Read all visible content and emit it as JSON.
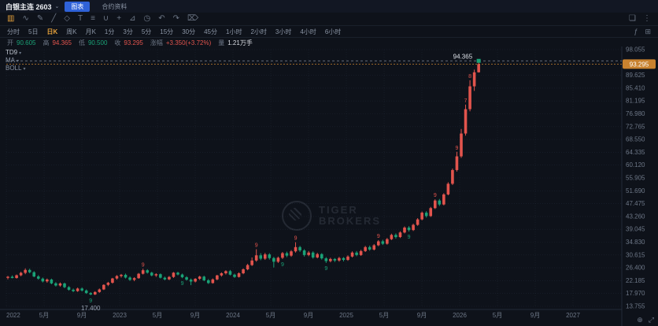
{
  "header": {
    "title": "白银主连 2603",
    "tabs": [
      {
        "label": "图表",
        "active": true
      },
      {
        "label": "合约资料",
        "active": false
      }
    ]
  },
  "toolbar": {
    "icons": [
      {
        "name": "kline-type-icon",
        "glyph": "▥",
        "active": true
      },
      {
        "name": "line-chart-icon",
        "glyph": "∿"
      },
      {
        "name": "drawing-pencil-icon",
        "glyph": "✎"
      },
      {
        "name": "trend-line-icon",
        "glyph": "╱"
      },
      {
        "name": "shapes-icon",
        "glyph": "◇"
      },
      {
        "name": "text-tool-icon",
        "glyph": "T"
      },
      {
        "name": "fibonacci-icon",
        "glyph": "≡"
      },
      {
        "name": "magnet-icon",
        "glyph": "∪"
      },
      {
        "name": "crosshair-icon",
        "glyph": "+"
      },
      {
        "name": "ruler-icon",
        "glyph": "⊿"
      },
      {
        "name": "clock-icon",
        "glyph": "◷"
      },
      {
        "name": "undo-icon",
        "glyph": "↶"
      },
      {
        "name": "redo-icon",
        "glyph": "↷"
      },
      {
        "name": "delete-icon",
        "glyph": "⌦"
      }
    ],
    "right_icons": [
      {
        "name": "window-layout-icon",
        "glyph": "❏"
      },
      {
        "name": "more-menu-icon",
        "glyph": "⋮"
      }
    ]
  },
  "timeframes": {
    "items": [
      "分时",
      "5日",
      "日K",
      "周K",
      "月K",
      "1分",
      "3分",
      "5分",
      "15分",
      "30分",
      "45分",
      "1小时",
      "2小时",
      "3小时",
      "4小时",
      "6小时"
    ],
    "active_index": 2,
    "right_icons": [
      {
        "name": "indicator-fx-icon",
        "glyph": "ƒ"
      },
      {
        "name": "grid-view-icon",
        "glyph": "⊞"
      }
    ]
  },
  "quote": {
    "open_label": "开",
    "open": "90.605",
    "high_label": "高",
    "high": "94.365",
    "low_label": "低",
    "low": "90.500",
    "close_label": "收",
    "close": "93.295",
    "chg_label": "涨幅",
    "chg": "+3.350(+3.72%)",
    "vol_label": "量",
    "vol": "1.21万手"
  },
  "indicators": [
    {
      "label": "TD9"
    },
    {
      "label": "MA"
    },
    {
      "label": "BOLL"
    }
  ],
  "watermark": {
    "line1": "TIGER",
    "line2": "BROKERS"
  },
  "chart_data": {
    "type": "candlestick",
    "timeframe": "日K",
    "title": "白银主连 2603",
    "y_axis": {
      "min": 13.755,
      "max": 98.055,
      "step": 4.215,
      "labels": [
        "98.055",
        "93.840",
        "89.625",
        "85.410",
        "81.195",
        "76.980",
        "72.765",
        "68.550",
        "64.335",
        "60.120",
        "55.905",
        "51.690",
        "47.475",
        "43.260",
        "39.045",
        "34.830",
        "30.615",
        "26.400",
        "22.185",
        "17.970",
        "13.755"
      ]
    },
    "x_labels": [
      {
        "t": 0,
        "label": "2022"
      },
      {
        "t": 4,
        "label": "5月"
      },
      {
        "t": 8,
        "label": "9月"
      },
      {
        "t": 12,
        "label": "2023"
      },
      {
        "t": 16,
        "label": "5月"
      },
      {
        "t": 20,
        "label": "9月"
      },
      {
        "t": 24,
        "label": "2024"
      },
      {
        "t": 28,
        "label": "5月"
      },
      {
        "t": 32,
        "label": "9月"
      },
      {
        "t": 36,
        "label": "2025"
      },
      {
        "t": 40,
        "label": "5月"
      },
      {
        "t": 44,
        "label": "9月"
      },
      {
        "t": 48,
        "label": "2026"
      },
      {
        "t": 52,
        "label": "5月"
      },
      {
        "t": 56,
        "label": "9月"
      },
      {
        "t": 60,
        "label": "2027"
      }
    ],
    "candles": [
      [
        23.1,
        23.75,
        22.6,
        23.45
      ],
      [
        23.45,
        23.9,
        22.95,
        23.05
      ],
      [
        23.05,
        24.2,
        22.85,
        23.95
      ],
      [
        23.95,
        25.1,
        23.6,
        24.75
      ],
      [
        24.75,
        26.2,
        24.3,
        25.7
      ],
      [
        25.7,
        26.1,
        24.6,
        24.95
      ],
      [
        24.95,
        25.3,
        23.3,
        23.55
      ],
      [
        23.55,
        24.0,
        22.5,
        22.85
      ],
      [
        22.85,
        23.2,
        21.6,
        21.95
      ],
      [
        21.95,
        22.9,
        21.5,
        22.55
      ],
      [
        22.55,
        22.85,
        21.0,
        21.3
      ],
      [
        21.3,
        21.7,
        20.25,
        20.6
      ],
      [
        20.6,
        21.6,
        20.2,
        21.25
      ],
      [
        21.25,
        21.55,
        19.7,
        20.05
      ],
      [
        20.05,
        20.4,
        18.9,
        19.2
      ],
      [
        19.2,
        19.6,
        18.4,
        18.75
      ],
      [
        18.75,
        19.9,
        18.5,
        19.6
      ],
      [
        19.6,
        19.95,
        18.6,
        18.95
      ],
      [
        18.95,
        19.3,
        17.85,
        18.1
      ],
      [
        18.1,
        18.4,
        17.4,
        17.65
      ],
      [
        17.65,
        18.7,
        17.45,
        18.45
      ],
      [
        18.45,
        19.6,
        18.2,
        19.3
      ],
      [
        19.3,
        21.0,
        19.1,
        20.8
      ],
      [
        20.8,
        21.8,
        20.4,
        21.5
      ],
      [
        21.5,
        23.1,
        21.2,
        22.9
      ],
      [
        22.9,
        24.0,
        22.5,
        23.7
      ],
      [
        23.7,
        24.4,
        23.2,
        24.1
      ],
      [
        24.1,
        24.5,
        22.9,
        23.2
      ],
      [
        23.2,
        23.6,
        22.1,
        22.45
      ],
      [
        22.45,
        23.3,
        22.0,
        23.0
      ],
      [
        23.0,
        24.7,
        22.8,
        24.45
      ],
      [
        24.45,
        26.1,
        24.2,
        25.6
      ],
      [
        25.6,
        25.95,
        24.5,
        24.8
      ],
      [
        24.8,
        25.1,
        23.6,
        23.9
      ],
      [
        23.9,
        24.6,
        23.4,
        24.3
      ],
      [
        24.3,
        24.55,
        22.9,
        23.15
      ],
      [
        23.15,
        23.5,
        22.3,
        22.6
      ],
      [
        22.6,
        23.7,
        22.35,
        23.4
      ],
      [
        23.4,
        25.0,
        23.1,
        24.8
      ],
      [
        24.8,
        25.1,
        23.9,
        24.2
      ],
      [
        24.2,
        24.5,
        23.0,
        23.3
      ],
      [
        23.3,
        23.65,
        22.2,
        22.5
      ],
      [
        22.5,
        22.9,
        20.7,
        21.9
      ],
      [
        21.9,
        23.0,
        21.6,
        22.8
      ],
      [
        22.8,
        23.8,
        22.4,
        23.5
      ],
      [
        23.5,
        23.8,
        22.0,
        22.3
      ],
      [
        22.3,
        22.7,
        21.1,
        21.4
      ],
      [
        21.4,
        22.9,
        21.2,
        22.6
      ],
      [
        22.6,
        24.1,
        22.3,
        23.9
      ],
      [
        23.9,
        24.9,
        23.5,
        24.6
      ],
      [
        24.6,
        25.6,
        24.2,
        25.3
      ],
      [
        25.3,
        25.7,
        23.9,
        24.15
      ],
      [
        24.15,
        24.5,
        23.1,
        23.4
      ],
      [
        23.4,
        24.9,
        23.2,
        24.6
      ],
      [
        24.6,
        26.2,
        24.3,
        25.9
      ],
      [
        25.9,
        27.7,
        25.6,
        27.3
      ],
      [
        27.3,
        29.8,
        27.0,
        28.8
      ],
      [
        28.8,
        32.5,
        28.4,
        30.5
      ],
      [
        30.5,
        31.2,
        28.9,
        29.4
      ],
      [
        29.4,
        31.3,
        29.0,
        30.8
      ],
      [
        30.8,
        31.2,
        29.1,
        29.6
      ],
      [
        29.6,
        30.0,
        26.5,
        28.4
      ],
      [
        28.4,
        30.1,
        28.0,
        29.7
      ],
      [
        29.7,
        31.6,
        29.3,
        31.2
      ],
      [
        31.2,
        31.7,
        29.9,
        30.4
      ],
      [
        30.4,
        32.2,
        30.0,
        31.8
      ],
      [
        31.8,
        34.8,
        31.4,
        33.2
      ],
      [
        33.2,
        33.6,
        31.6,
        32.1
      ],
      [
        32.1,
        32.5,
        30.1,
        30.6
      ],
      [
        30.6,
        31.9,
        30.2,
        31.4
      ],
      [
        31.4,
        31.8,
        29.4,
        29.8
      ],
      [
        29.8,
        31.3,
        29.5,
        30.9
      ],
      [
        30.9,
        31.2,
        29.1,
        29.5
      ],
      [
        29.5,
        29.9,
        28.0,
        28.6
      ],
      [
        28.6,
        29.7,
        28.2,
        29.3
      ],
      [
        29.3,
        29.6,
        28.3,
        28.8
      ],
      [
        28.8,
        30.0,
        28.4,
        29.6
      ],
      [
        29.6,
        29.9,
        28.5,
        29.0
      ],
      [
        29.0,
        30.5,
        28.7,
        30.1
      ],
      [
        30.1,
        31.8,
        29.8,
        31.4
      ],
      [
        31.4,
        31.9,
        30.2,
        30.6
      ],
      [
        30.6,
        32.3,
        30.3,
        31.9
      ],
      [
        31.9,
        33.6,
        31.6,
        33.2
      ],
      [
        33.2,
        33.7,
        32.0,
        32.4
      ],
      [
        32.4,
        34.2,
        32.1,
        33.8
      ],
      [
        33.8,
        35.5,
        33.5,
        35.1
      ],
      [
        35.1,
        35.6,
        33.9,
        34.3
      ],
      [
        34.3,
        36.2,
        34.0,
        35.8
      ],
      [
        35.8,
        37.6,
        35.5,
        37.2
      ],
      [
        37.2,
        37.7,
        36.0,
        36.5
      ],
      [
        36.5,
        38.4,
        36.2,
        38.0
      ],
      [
        38.0,
        40.0,
        37.7,
        39.6
      ],
      [
        39.6,
        40.1,
        38.3,
        38.8
      ],
      [
        38.8,
        40.9,
        38.5,
        40.5
      ],
      [
        40.5,
        42.7,
        40.2,
        42.3
      ],
      [
        42.3,
        44.9,
        42.0,
        44.5
      ],
      [
        44.5,
        45.0,
        42.9,
        43.4
      ],
      [
        43.4,
        46.4,
        43.1,
        46.0
      ],
      [
        46.0,
        48.9,
        45.7,
        48.5
      ],
      [
        48.5,
        49.0,
        46.7,
        47.2
      ],
      [
        47.2,
        50.9,
        46.9,
        50.5
      ],
      [
        50.5,
        54.5,
        50.2,
        54.0
      ],
      [
        54.0,
        59.0,
        53.6,
        58.5
      ],
      [
        58.5,
        64.5,
        58.0,
        63.0
      ],
      [
        63.0,
        72.0,
        62.5,
        70.5
      ],
      [
        70.5,
        80.0,
        69.8,
        78.5
      ],
      [
        78.5,
        88.0,
        77.8,
        86.0
      ],
      [
        86.0,
        91.5,
        84.5,
        90.6
      ],
      [
        90.605,
        94.365,
        90.5,
        93.295
      ]
    ],
    "markers": [
      {
        "i": 19,
        "t": "9",
        "c": "down",
        "p": "below"
      },
      {
        "i": 31,
        "t": "9",
        "c": "up",
        "p": "above"
      },
      {
        "i": 40,
        "t": "9",
        "c": "down",
        "p": "below"
      },
      {
        "i": 57,
        "t": "9",
        "c": "up",
        "p": "above"
      },
      {
        "i": 63,
        "t": "9",
        "c": "down",
        "p": "below"
      },
      {
        "i": 66,
        "t": "9",
        "c": "up",
        "p": "above"
      },
      {
        "i": 73,
        "t": "9",
        "c": "down",
        "p": "below"
      },
      {
        "i": 85,
        "t": "9",
        "c": "up",
        "p": "above"
      },
      {
        "i": 92,
        "t": "9",
        "c": "down",
        "p": "below"
      },
      {
        "i": 98,
        "t": "9",
        "c": "up",
        "p": "above"
      },
      {
        "i": 103,
        "t": "9",
        "c": "up",
        "p": "above"
      },
      {
        "i": 105,
        "t": "7",
        "c": "up",
        "p": "above"
      },
      {
        "i": 106,
        "t": "8",
        "c": "up",
        "p": "above"
      }
    ],
    "low_label": {
      "i": 19,
      "text": "17.400"
    },
    "high_line": {
      "price": 94.365,
      "label": "94.365"
    },
    "last_price": {
      "value": 93.295,
      "label": "93.295"
    },
    "colors": {
      "up": "#e2544d",
      "down": "#1aa176",
      "badge": "#c9822f"
    }
  }
}
